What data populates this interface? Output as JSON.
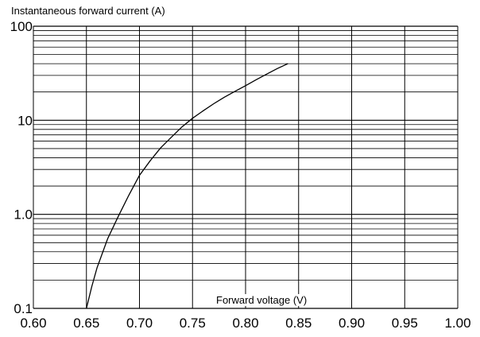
{
  "chart_data": {
    "type": "line",
    "ylabel": "Instantaneous forward current (A)",
    "xlabel": "Forward voltage (V)",
    "x_axis": {
      "range": [
        0.6,
        1.0
      ],
      "ticks": [
        0.6,
        0.65,
        0.7,
        0.75,
        0.8,
        0.85,
        0.9,
        0.95,
        1.0
      ],
      "tick_labels": [
        "0.60",
        "0.65",
        "0.70",
        "0.75",
        "0.80",
        "0.85",
        "0.90",
        "0.95",
        "1.00"
      ]
    },
    "y_axis": {
      "scale": "log",
      "range": [
        0.1,
        100
      ],
      "tick_labels": [
        {
          "value": 0.1,
          "label": "0.1"
        },
        {
          "value": 1,
          "label": "1.0"
        },
        {
          "value": 10,
          "label": "10"
        },
        {
          "value": 100,
          "label": "100"
        }
      ]
    },
    "grid": true,
    "series": [
      {
        "x": [
          0.65,
          0.655,
          0.66,
          0.67,
          0.68,
          0.69,
          0.7,
          0.71,
          0.72,
          0.73,
          0.74,
          0.75,
          0.76,
          0.77,
          0.78,
          0.79,
          0.8,
          0.81,
          0.82,
          0.83,
          0.84
        ],
        "y": [
          0.1,
          0.17,
          0.27,
          0.55,
          0.95,
          1.6,
          2.6,
          3.7,
          5.1,
          6.6,
          8.5,
          10.5,
          12.6,
          15.0,
          17.6,
          20.3,
          23.3,
          27.0,
          31.0,
          35.5,
          40.0
        ]
      }
    ]
  }
}
